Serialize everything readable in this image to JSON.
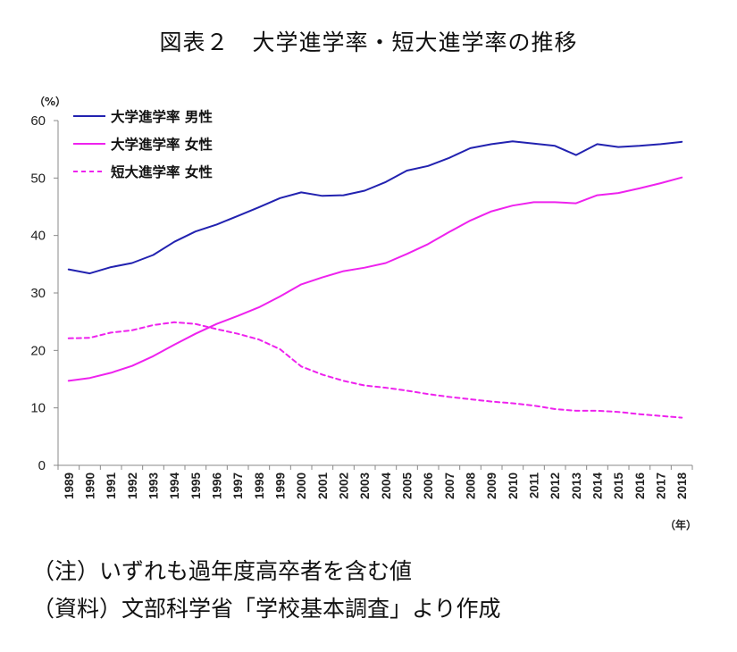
{
  "title": "図表２　大学進学率・短大進学率の推移",
  "notes": {
    "note1": "（注）いずれも過年度高卒者を含む値",
    "note2": "（資料）文部科学省「学校基本調査」より作成"
  },
  "chart_data": {
    "type": "line",
    "title": "図表２　大学進学率・短大進学率の推移",
    "ylabel": "（%）",
    "xlabel": "（年）",
    "ylim": [
      0,
      60
    ],
    "yticks": [
      0,
      10,
      20,
      30,
      40,
      50,
      60
    ],
    "grid": false,
    "legend_position": "top-left",
    "x": [
      "1989",
      "1990",
      "1991",
      "1992",
      "1993",
      "1994",
      "1995",
      "1996",
      "1997",
      "1998",
      "1999",
      "2000",
      "2001",
      "2002",
      "2003",
      "2004",
      "2005",
      "2006",
      "2007",
      "2008",
      "2009",
      "2010",
      "2011",
      "2012",
      "2013",
      "2014",
      "2015",
      "2016",
      "2017",
      "2018"
    ],
    "series": [
      {
        "name": "大学進学率 男性",
        "color": "#2222b0",
        "dash": "solid",
        "values": [
          34.1,
          33.4,
          34.5,
          35.2,
          36.6,
          38.9,
          40.7,
          41.9,
          43.4,
          44.9,
          46.5,
          47.5,
          46.9,
          47.0,
          47.8,
          49.3,
          51.3,
          52.1,
          53.5,
          55.2,
          55.9,
          56.4,
          56.0,
          55.6,
          54.0,
          55.9,
          55.4,
          55.6,
          55.9,
          56.3
        ]
      },
      {
        "name": "大学進学率 女性",
        "color": "#ee22ee",
        "dash": "solid",
        "values": [
          14.7,
          15.2,
          16.1,
          17.3,
          19.0,
          21.0,
          22.9,
          24.6,
          26.0,
          27.5,
          29.4,
          31.5,
          32.7,
          33.8,
          34.4,
          35.2,
          36.8,
          38.5,
          40.6,
          42.6,
          44.2,
          45.2,
          45.8,
          45.8,
          45.6,
          47.0,
          47.4,
          48.2,
          49.1,
          50.1
        ]
      },
      {
        "name": "短大進学率 女性",
        "color": "#ee22ee",
        "dash": "dashed",
        "values": [
          22.1,
          22.2,
          23.1,
          23.5,
          24.4,
          24.9,
          24.6,
          23.7,
          22.9,
          21.9,
          20.2,
          17.2,
          15.8,
          14.7,
          13.9,
          13.5,
          13.0,
          12.4,
          11.9,
          11.5,
          11.1,
          10.8,
          10.4,
          9.8,
          9.5,
          9.5,
          9.3,
          8.9,
          8.6,
          8.3
        ]
      }
    ]
  }
}
